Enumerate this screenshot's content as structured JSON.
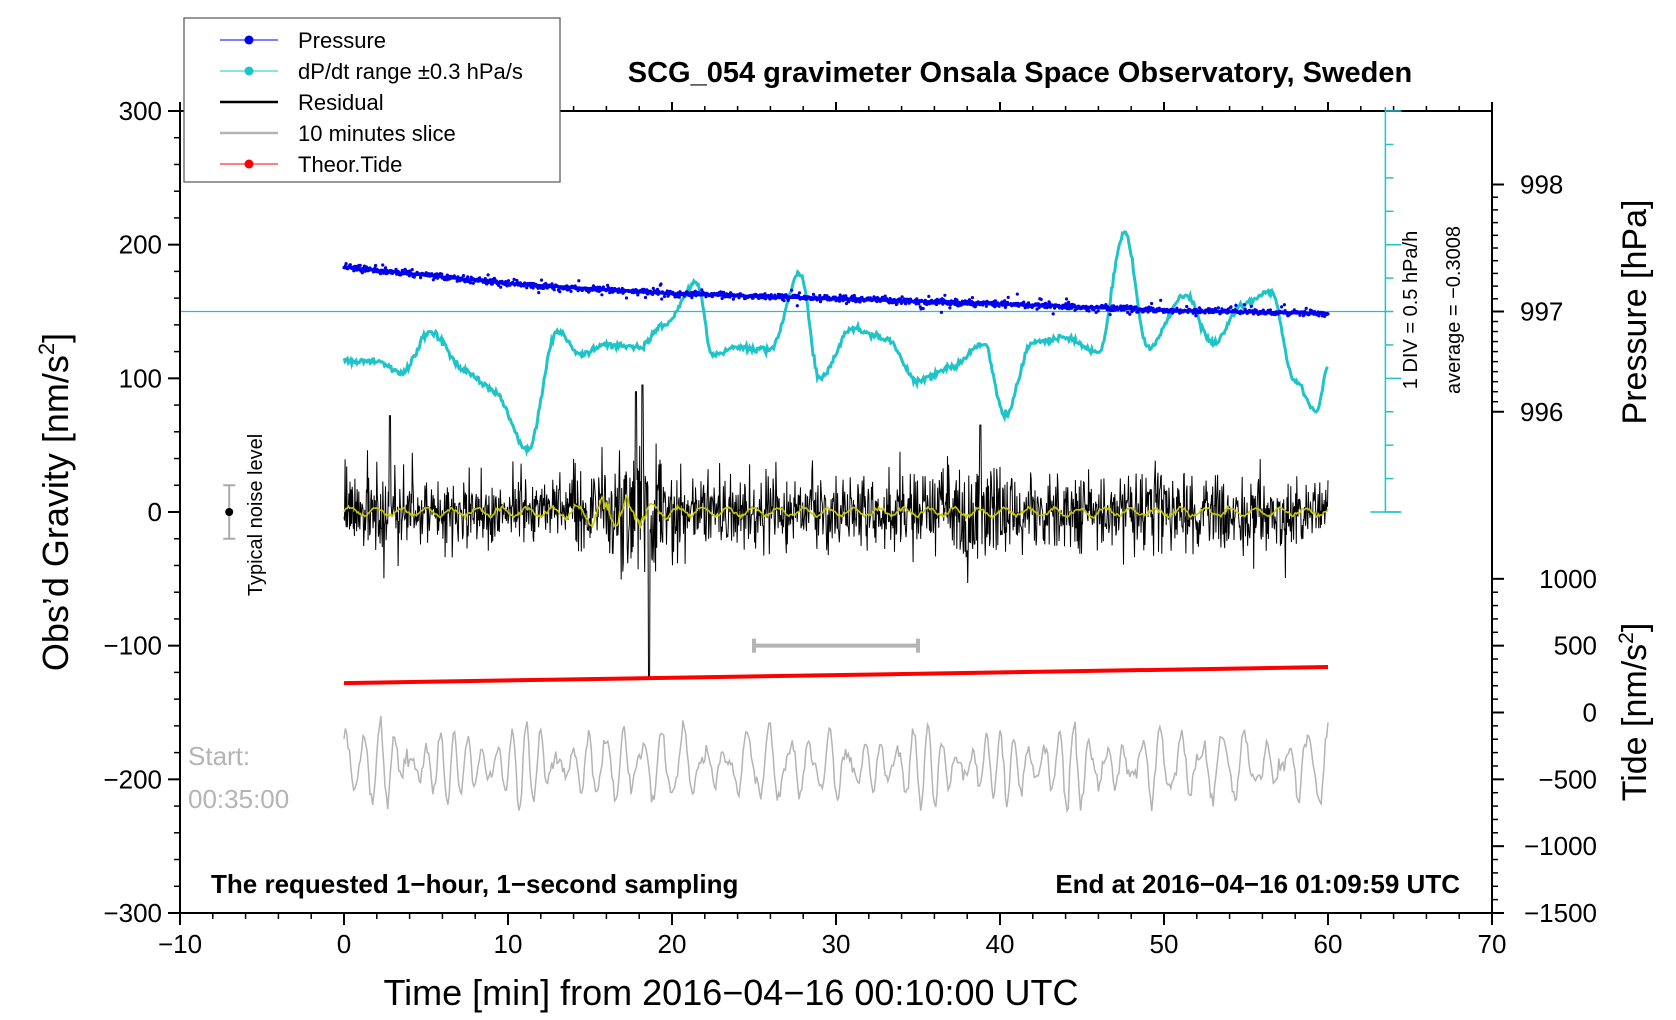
{
  "chart_data": {
    "type": "line",
    "title": "SCG_054 gravimeter Onsala Space Observatory, Sweden",
    "xlabel": "Time [min] from 2016−04−16 00:10:00 UTC",
    "ylabel_left": "Obs’d Gravity [nm/s",
    "ylabel_left_sup": "2",
    "ylabel_left_end": "]",
    "ylabel_right_pressure": "Pressure [hPa]",
    "ylabel_right_tide": "Tide [nm/s",
    "ylabel_right_tide_sup": "2",
    "ylabel_right_tide_end": "]",
    "xlim": [
      -10,
      70
    ],
    "ylim_left": [
      -300,
      300
    ],
    "x_ticks": [
      "−10",
      "0",
      "10",
      "20",
      "30",
      "40",
      "50",
      "60",
      "70"
    ],
    "y_ticks_left": [
      "300",
      "200",
      "100",
      "0",
      "−100",
      "−200",
      "−300"
    ],
    "pressure_ticks": [
      "998",
      "997",
      "996"
    ],
    "tide_ticks": [
      "1000",
      "500",
      "0",
      "−500",
      "−1000",
      "−1500"
    ],
    "pressure_axis": {
      "hPa": [
        998,
        997,
        996
      ],
      "gravity_equiv": [
        245,
        150,
        75
      ]
    },
    "tide_axis": {
      "nm_s2": [
        1000,
        500,
        0,
        -500,
        -1000,
        -1500
      ],
      "gravity_equiv": [
        -50,
        -100,
        -150,
        -200,
        -250,
        -300
      ]
    },
    "legend": [
      "Pressure",
      "dP/dt range ±0.3 hPa/s",
      "Residual",
      "10 minutes slice",
      "Theor.Tide"
    ],
    "colors": {
      "pressure": "#0000ee",
      "dpdt": "#1fc4c8",
      "residual": "#000000",
      "residual_smooth": "#c8c800",
      "slice": "#b4b4b4",
      "tide": "#ff0000"
    },
    "series": [
      {
        "name": "Pressure",
        "x": [
          0,
          10,
          20,
          30,
          40,
          50,
          60
        ],
        "values": [
          997.35,
          997.22,
          997.14,
          997.1,
          997.06,
          997.01,
          996.98
        ]
      },
      {
        "name": "dP/dt range ±0.3 hPa/s",
        "x": [
          0,
          2,
          3.5,
          5.3,
          7.5,
          9,
          11.2,
          13,
          14.5,
          16,
          18,
          19.5,
          21.5,
          22.5,
          24,
          26,
          27.8,
          29,
          31,
          33,
          35,
          37,
          39,
          40.3,
          42,
          44,
          46,
          47.6,
          49,
          51.3,
          53,
          54.8,
          56.5,
          58,
          59.3,
          60
        ],
        "values": [
          113,
          113,
          104,
          135,
          105,
          92,
          47,
          135,
          118,
          125,
          123,
          140,
          171,
          118,
          123,
          122,
          178,
          100,
          137,
          130,
          98,
          108,
          126,
          72,
          127,
          130,
          120,
          209,
          123,
          162,
          126,
          155,
          165,
          98,
          76,
          108
        ]
      },
      {
        "name": "Residual",
        "x": [
          0,
          10,
          15,
          17,
          18.2,
          18.6,
          20,
          30,
          38,
          40,
          50,
          60
        ],
        "values": [
          0,
          0,
          5,
          40,
          95,
          -125,
          20,
          0,
          65,
          0,
          0,
          0
        ],
        "typical_amplitude": 30
      },
      {
        "name": "10 minutes slice",
        "x": [
          25,
          35
        ],
        "values": [
          -100,
          -100
        ]
      },
      {
        "name": "Theor.Tide",
        "x": [
          0,
          60
        ],
        "values": [
          -128,
          -116
        ]
      }
    ],
    "annotations": {
      "start_line1": "Start:",
      "start_line2": "00:35:00",
      "bottom_left": "The requested 1−hour, 1−second sampling",
      "bottom_right": "End at 2016−04−16 01:09:59 UTC",
      "noise": "Typical noise level",
      "div": "1 DIV = 0.5 hPa/h",
      "average": "average = −0.3008",
      "noise_bar": {
        "x": -7,
        "center": 0,
        "half_range": 20
      }
    }
  }
}
